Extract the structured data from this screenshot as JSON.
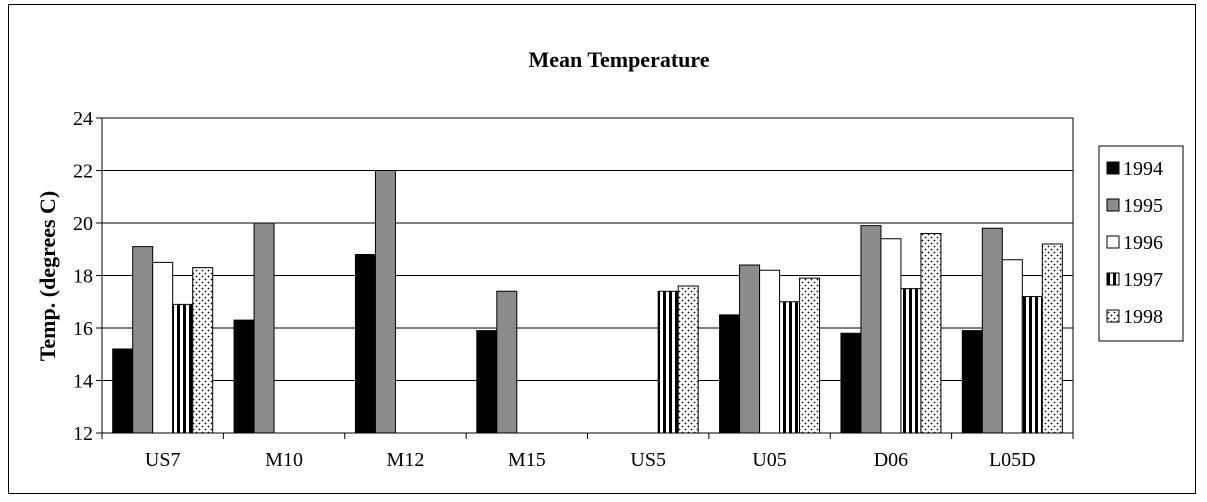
{
  "chart_data": {
    "type": "bar",
    "title": "Mean Temperature",
    "ylabel": "Temp. (degrees C)",
    "xlabel": "",
    "ylim": [
      12,
      24
    ],
    "yticks": [
      "12",
      "14",
      "16",
      "18",
      "20",
      "22",
      "24"
    ],
    "grid": true,
    "legend_position": "right",
    "categories": [
      "US7",
      "M10",
      "M12",
      "M15",
      "US5",
      "U05",
      "D06",
      "L05D"
    ],
    "series": [
      {
        "name": "1994",
        "fill": "solid-black",
        "values": [
          15.2,
          16.3,
          18.8,
          15.9,
          null,
          16.5,
          15.8,
          15.9
        ]
      },
      {
        "name": "1995",
        "fill": "solid-gray",
        "values": [
          19.1,
          20.0,
          22.0,
          17.4,
          null,
          18.4,
          19.9,
          19.8
        ]
      },
      {
        "name": "1996",
        "fill": "solid-white",
        "values": [
          18.5,
          null,
          null,
          null,
          null,
          18.2,
          19.4,
          18.6
        ]
      },
      {
        "name": "1997",
        "fill": "vertical-stripes",
        "values": [
          16.9,
          null,
          null,
          null,
          17.4,
          17.0,
          17.5,
          17.2
        ]
      },
      {
        "name": "1998",
        "fill": "dotted",
        "values": [
          18.3,
          null,
          null,
          null,
          17.6,
          17.9,
          19.6,
          19.2
        ]
      }
    ]
  },
  "colors": {
    "solid-black": "#000000",
    "solid-gray": "#8c8c8c",
    "solid-white": "#ffffff",
    "grid": "#000000"
  }
}
